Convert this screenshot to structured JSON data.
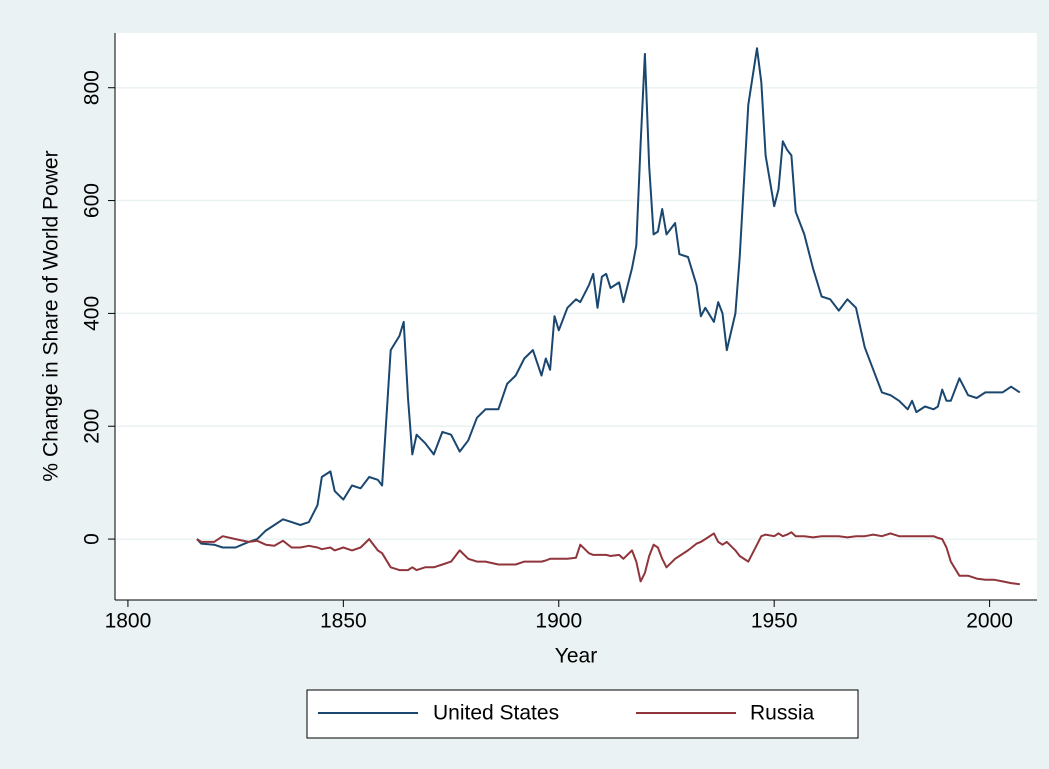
{
  "chart_data": {
    "type": "line",
    "xlabel": "Year",
    "ylabel": "% Change in Share of World Power",
    "x": [
      1816,
      1817,
      1820,
      1822,
      1825,
      1828,
      1830,
      1832,
      1834,
      1836,
      1838,
      1840,
      1842,
      1844,
      1845,
      1847,
      1848,
      1850,
      1852,
      1854,
      1856,
      1858,
      1859,
      1861,
      1863,
      1864,
      1865,
      1866,
      1867,
      1869,
      1871,
      1873,
      1875,
      1877,
      1879,
      1881,
      1883,
      1886,
      1888,
      1890,
      1892,
      1894,
      1896,
      1897,
      1898,
      1899,
      1900,
      1902,
      1904,
      1905,
      1907,
      1908,
      1909,
      1910,
      1911,
      1912,
      1914,
      1915,
      1917,
      1918,
      1919,
      1920,
      1921,
      1922,
      1923,
      1924,
      1925,
      1927,
      1928,
      1930,
      1932,
      1933,
      1934,
      1936,
      1937,
      1938,
      1939,
      1941,
      1942,
      1944,
      1946,
      1947,
      1948,
      1950,
      1951,
      1952,
      1953,
      1954,
      1955,
      1957,
      1959,
      1961,
      1963,
      1965,
      1967,
      1969,
      1971,
      1973,
      1975,
      1977,
      1979,
      1981,
      1982,
      1983,
      1985,
      1987,
      1988,
      1989,
      1990,
      1991,
      1993,
      1995,
      1997,
      1999,
      2001,
      2003,
      2005,
      2007
    ],
    "series": [
      {
        "name": "United States",
        "color": "#1a476f",
        "values": [
          0,
          -8,
          -10,
          -15,
          -15,
          -5,
          0,
          15,
          25,
          35,
          30,
          25,
          30,
          60,
          110,
          120,
          85,
          70,
          95,
          90,
          110,
          105,
          95,
          335,
          360,
          385,
          250,
          150,
          185,
          170,
          150,
          190,
          185,
          155,
          175,
          215,
          230,
          230,
          275,
          290,
          320,
          335,
          290,
          320,
          300,
          395,
          370,
          410,
          425,
          420,
          450,
          470,
          410,
          465,
          470,
          445,
          455,
          420,
          480,
          520,
          700,
          860,
          660,
          540,
          545,
          585,
          540,
          560,
          505,
          500,
          450,
          395,
          410,
          385,
          420,
          400,
          335,
          400,
          500,
          770,
          870,
          810,
          680,
          590,
          620,
          705,
          690,
          680,
          580,
          540,
          480,
          430,
          425,
          405,
          425,
          410,
          340,
          300,
          260,
          255,
          245,
          230,
          245,
          225,
          235,
          230,
          235,
          265,
          245,
          245,
          285,
          255,
          250,
          260,
          260,
          260,
          270,
          260
        ]
      },
      {
        "name": "Russia",
        "color": "#90353b",
        "values": [
          0,
          -5,
          -5,
          5,
          0,
          -5,
          -3,
          -10,
          -12,
          -3,
          -15,
          -15,
          -12,
          -15,
          -18,
          -15,
          -20,
          -15,
          -20,
          -15,
          0,
          -20,
          -25,
          -50,
          -55,
          -55,
          -55,
          -50,
          -55,
          -50,
          -50,
          -45,
          -40,
          -20,
          -35,
          -40,
          -40,
          -45,
          -45,
          -45,
          -40,
          -40,
          -40,
          -38,
          -35,
          -35,
          -35,
          -35,
          -33,
          -10,
          -25,
          -28,
          -28,
          -28,
          -28,
          -30,
          -28,
          -35,
          -20,
          -40,
          -75,
          -60,
          -30,
          -10,
          -15,
          -35,
          -50,
          -35,
          -30,
          -20,
          -8,
          -5,
          0,
          10,
          -5,
          -10,
          -5,
          -20,
          -30,
          -40,
          -10,
          5,
          8,
          5,
          10,
          5,
          8,
          12,
          5,
          5,
          3,
          5,
          5,
          5,
          3,
          5,
          5,
          8,
          5,
          10,
          5,
          5,
          5,
          5,
          5,
          5,
          2,
          0,
          -15,
          -40,
          -65,
          -65,
          -70,
          -72,
          -72,
          -75,
          -78,
          -80
        ]
      }
    ],
    "xlim": [
      1797,
      2011
    ],
    "xticks": [
      1800,
      1850,
      1900,
      1950,
      2000
    ],
    "ylim": [
      -108,
      897
    ],
    "yticks": [
      0,
      200,
      400,
      600,
      800
    ],
    "grid": true,
    "legend": "bottom"
  }
}
